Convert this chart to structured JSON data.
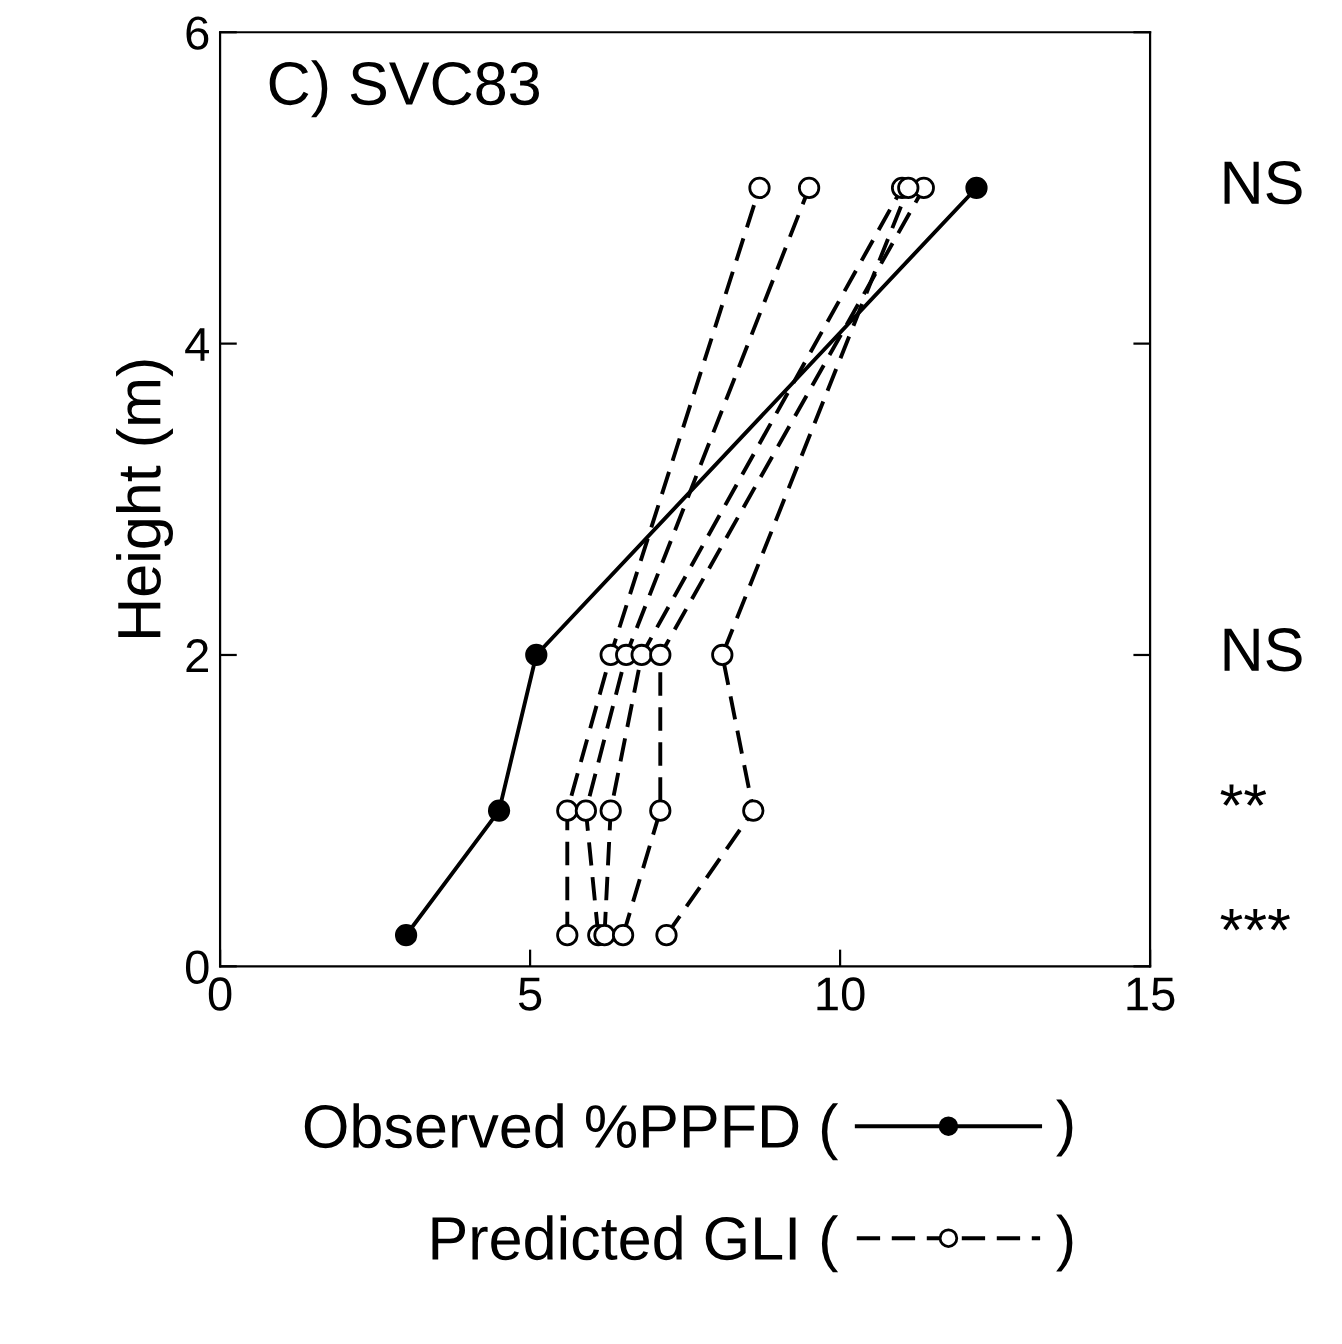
{
  "chart_data": {
    "type": "line",
    "title": "C) SVC83",
    "ylabel": "Height (m)",
    "xlim": [
      0,
      15
    ],
    "xticks": [
      0,
      5,
      10,
      15
    ],
    "ylim": [
      0,
      6
    ],
    "yticks": [
      0,
      2,
      4,
      6
    ],
    "grid": false,
    "legend": "bottom",
    "series": [
      {
        "name": "Observed %PPFD (",
        "color": "#000000",
        "x": [
          3.0,
          4.5,
          5.1,
          12.2
        ],
        "values": [
          0.2,
          1,
          2,
          5
        ],
        "marker": "circle",
        "line_style": "solid"
      },
      {
        "name": "Predicted GLI (",
        "color": "#000000",
        "x": [
          5.6,
          5.6,
          6.3,
          8.7
        ],
        "values": [
          0.2,
          1,
          2,
          5
        ],
        "marker": "circle",
        "line_style": "dashed"
      },
      {
        "color": "#000000",
        "x": [
          6.1,
          5.9,
          6.55,
          9.5
        ],
        "values": [
          0.2,
          1,
          2,
          5
        ],
        "marker": "circle",
        "line_style": "dashed"
      },
      {
        "color": "#000000",
        "x": [
          6.2,
          6.3,
          6.8,
          11.0
        ],
        "values": [
          0.2,
          1,
          2,
          5
        ],
        "marker": "circle",
        "line_style": "dashed"
      },
      {
        "color": "#000000",
        "x": [
          6.5,
          7.1,
          7.1,
          11.35
        ],
        "values": [
          0.2,
          1,
          2,
          5
        ],
        "marker": "circle",
        "line_style": "dashed"
      },
      {
        "color": "#000000",
        "x": [
          7.2,
          8.6,
          8.1,
          11.1
        ],
        "values": [
          0.2,
          1,
          2,
          5
        ],
        "marker": "circle",
        "line_style": "dashed"
      }
    ],
    "annotations": [
      "NS",
      "NS",
      "**",
      "***",
      ")",
      ")"
    ]
  }
}
